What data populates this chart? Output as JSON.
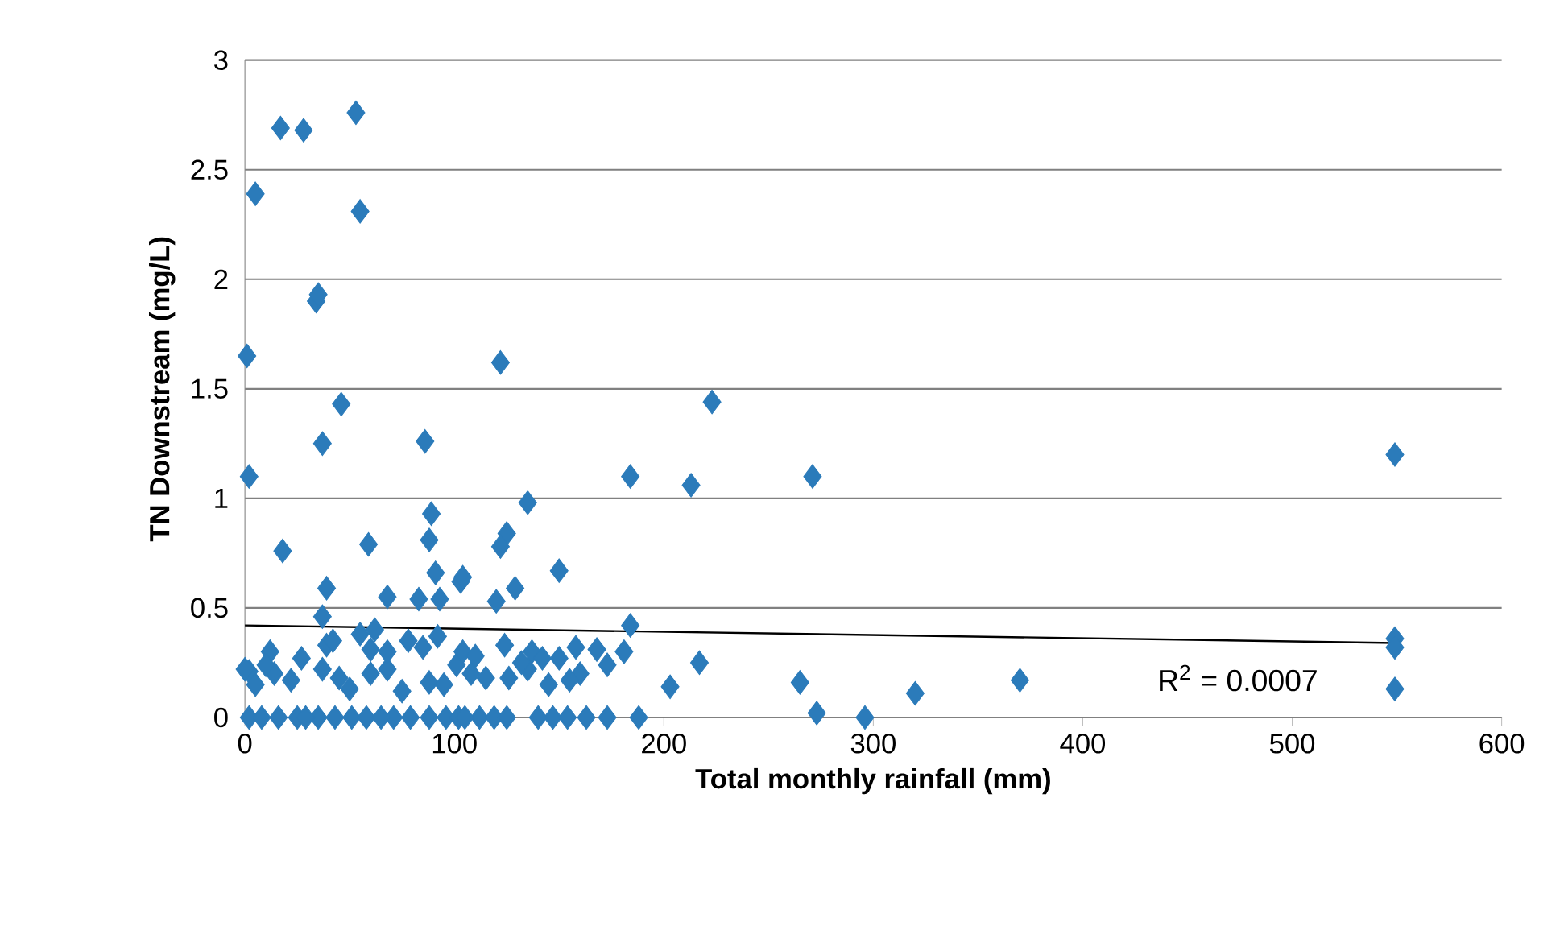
{
  "chart_data": {
    "type": "scatter",
    "xlabel": "Total monthly rainfall (mm)",
    "ylabel": "TN Downstream (mg/L)",
    "xlim": [
      0,
      600
    ],
    "ylim": [
      0,
      3
    ],
    "xticks": [
      0,
      100,
      200,
      300,
      400,
      500,
      600
    ],
    "yticks": [
      0,
      0.5,
      1,
      1.5,
      2,
      2.5,
      3
    ],
    "grid": "y",
    "marker": "diamond",
    "annotations": [
      "R$^{2}$ = 0.0007"
    ],
    "series": [
      {
        "color": "#2b7bba",
        "x": [
          1,
          5,
          17,
          28,
          53,
          55,
          34,
          35,
          2,
          37,
          46,
          122,
          86,
          59,
          18,
          88,
          89,
          91,
          103,
          125,
          122,
          135,
          150,
          129,
          184,
          213,
          223,
          271,
          549,
          549,
          549,
          549,
          370,
          320,
          296,
          273,
          265,
          217,
          203,
          188,
          184,
          2,
          16,
          35,
          43,
          51,
          58,
          71,
          79,
          88,
          96,
          102,
          112,
          119,
          125,
          147,
          154,
          173,
          8,
          25,
          65,
          105,
          140,
          163,
          29,
          2,
          14,
          37,
          45,
          60,
          68,
          88,
          101,
          108,
          126,
          135,
          150,
          160,
          173,
          181,
          12,
          39,
          60,
          68,
          85,
          104,
          124,
          137,
          158,
          168,
          39,
          37,
          68,
          83,
          93,
          104,
          120,
          5,
          22,
          50,
          75,
          95,
          115,
          132,
          145,
          155,
          0,
          10,
          27,
          42,
          55,
          62,
          78,
          92,
          110,
          142
        ],
        "values": [
          1.65,
          2.39,
          2.69,
          2.68,
          2.76,
          2.31,
          1.9,
          1.93,
          1.1,
          1.25,
          1.43,
          1.62,
          1.26,
          0.79,
          0.76,
          0.81,
          0.93,
          0.66,
          0.62,
          0.84,
          0.78,
          0.98,
          0.67,
          0.59,
          1.1,
          1.06,
          1.44,
          1.1,
          1.2,
          0.36,
          0.32,
          0.13,
          0.17,
          0.11,
          0,
          0.02,
          0.16,
          0.25,
          0.14,
          0,
          0.42,
          0,
          0,
          0,
          0,
          0,
          0,
          0,
          0,
          0,
          0,
          0,
          0,
          0,
          0,
          0,
          0,
          0,
          0,
          0,
          0,
          0,
          0,
          0,
          0,
          0.21,
          0.2,
          0.22,
          0.18,
          0.2,
          0.22,
          0.16,
          0.24,
          0.2,
          0.18,
          0.22,
          0.27,
          0.2,
          0.24,
          0.3,
          0.3,
          0.33,
          0.31,
          0.3,
          0.32,
          0.3,
          0.33,
          0.3,
          0.32,
          0.31,
          0.59,
          0.46,
          0.55,
          0.54,
          0.54,
          0.64,
          0.53,
          0.15,
          0.17,
          0.13,
          0.12,
          0.15,
          0.18,
          0.25,
          0.15,
          0.17,
          0.22,
          0.24,
          0.27,
          0.35,
          0.38,
          0.4,
          0.35,
          0.37,
          0.28,
          0.27
        ]
      },
      {
        "type": "line",
        "marker": "none",
        "color": "#000000",
        "x": [
          0,
          549
        ],
        "values": [
          0.42,
          0.34
        ]
      }
    ]
  }
}
